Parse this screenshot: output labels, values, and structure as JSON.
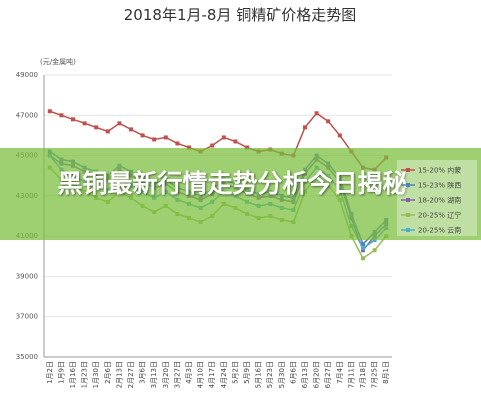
{
  "chart_data": {
    "type": "line",
    "title": "2018年1月-8月 铜精矿价格走势图",
    "y_label": "(元/金属吨)",
    "banner": "黑铜最新行情走势分析今日揭秘",
    "categories": [
      "1月2日",
      "1月9日",
      "1月16日",
      "1月23日",
      "1月30日",
      "2月6日",
      "2月13日",
      "2月27日",
      "3月6日",
      "3月13日",
      "3月20日",
      "3月27日",
      "4月3日",
      "4月10日",
      "4月17日",
      "4月24日",
      "5月2日",
      "5月9日",
      "5月16日",
      "5月23日",
      "5月30日",
      "6月6日",
      "6月13日",
      "6月20日",
      "6月27日",
      "7月4日",
      "7月11日",
      "7月18日",
      "7月25日",
      "8月1日"
    ],
    "series": [
      {
        "name": "15-20% 内蒙",
        "color": "#c0504d",
        "values": [
          47200,
          47000,
          46800,
          46600,
          46400,
          46200,
          46600,
          46300,
          46000,
          45800,
          45900,
          45600,
          45400,
          45200,
          45500,
          45900,
          45700,
          45400,
          45200,
          45300,
          45100,
          45000,
          46400,
          47100,
          46700,
          46000,
          45200,
          44400,
          44300,
          44900
        ]
      },
      {
        "name": "15-23% 陕西",
        "color": "#4f81bd",
        "values": [
          45200,
          44800,
          44700,
          44400,
          44200,
          44000,
          44500,
          44200,
          43900,
          43600,
          43800,
          43400,
          43200,
          43000,
          43300,
          43800,
          43600,
          43300,
          43100,
          43200,
          43000,
          42900,
          44300,
          45000,
          44600,
          43900,
          42100,
          40600,
          41200,
          41800
        ]
      },
      {
        "name": "18-20% 湖南",
        "color": "#8064a2",
        "values": [
          45000,
          44600,
          44500,
          44200,
          44000,
          43800,
          44300,
          44000,
          43700,
          43400,
          43600,
          43200,
          43000,
          42800,
          43100,
          43600,
          43400,
          43100,
          42900,
          43000,
          42800,
          42700,
          44100,
          44800,
          44400,
          43700,
          41900,
          40300,
          41000,
          41600
        ]
      },
      {
        "name": "20-25% 辽宁",
        "color": "#9bbb59",
        "values": [
          44400,
          43800,
          43600,
          43200,
          42900,
          42700,
          43200,
          42900,
          42500,
          42200,
          42500,
          42100,
          41900,
          41700,
          42000,
          42600,
          42400,
          42100,
          41900,
          42000,
          41800,
          41700,
          43200,
          44000,
          43500,
          42800,
          41000,
          39900,
          40300,
          41000
        ]
      },
      {
        "name": "20-25% 云南",
        "color": "#4bacc6",
        "values": [
          45000,
          44300,
          44000,
          43700,
          43400,
          43300,
          43800,
          43500,
          43200,
          42900,
          43200,
          42800,
          42600,
          42400,
          42700,
          43200,
          43000,
          42700,
          42500,
          42600,
          42400,
          42300,
          43700,
          44400,
          44000,
          43300,
          41500,
          40400,
          40800,
          41400
        ]
      }
    ],
    "ylim": [
      35000,
      49000
    ],
    "yticks": [
      35000,
      37000,
      39000,
      41000,
      43000,
      45000,
      47000,
      49000
    ],
    "grid": true
  }
}
